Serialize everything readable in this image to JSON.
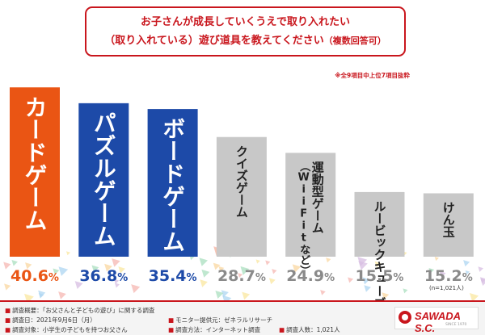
{
  "title": {
    "line1": "お子さんが成長していくうえで取り入れたい",
    "line2": "（取り入れている）遊び道具を教えてください",
    "line2_note": "（複数回答可）"
  },
  "footnote": "※全9項目中上位7項目抜粋",
  "sample_note": "(n=1,021人)",
  "colors": {
    "accent_red": "#c9161d",
    "bar_orange": "#ea5514",
    "bar_blue": "#1d4aa8",
    "bar_gray": "#c8c8c8",
    "label_gray": "#888888"
  },
  "chart_data": {
    "type": "bar",
    "categories": [
      "カードゲーム",
      "パズルゲーム",
      "ボードゲーム",
      "クイズゲーム",
      "運動型ゲーム（Wii Fitなど）",
      "ルービックキューブ",
      "けん玉"
    ],
    "values": [
      40.6,
      36.8,
      35.4,
      28.7,
      24.9,
      15.5,
      15.2
    ],
    "value_labels": [
      "40.6%",
      "36.8%",
      "35.4%",
      "28.7%",
      "24.9%",
      "15.5%",
      "15.2%"
    ],
    "bar_colors": [
      "#ea5514",
      "#1d4aa8",
      "#1d4aa8",
      "#c8c8c8",
      "#c8c8c8",
      "#c8c8c8",
      "#c8c8c8"
    ],
    "label_lines": [
      [
        "カードゲーム"
      ],
      [
        "パズルゲーム"
      ],
      [
        "ボードゲーム"
      ],
      [
        "クイズゲーム"
      ],
      [
        "運動型ゲーム",
        "（WiiFitなど）"
      ],
      [
        "ルービックキューブ"
      ],
      [
        "けん玉"
      ]
    ],
    "ylim": [
      0,
      42
    ],
    "xlabel": "",
    "ylabel": "",
    "grid": false,
    "legend": "none"
  },
  "footer": {
    "overview_label": "調査概要：",
    "overview": "「お父さんと子どもの遊び」に関する調査",
    "date_label": "調査日：",
    "date": "2021年9月6日（月）",
    "target_label": "調査対象：",
    "target": "小学生の子どもを持つお父さん",
    "monitor_label": "モニター提供元：",
    "monitor": "ゼネラルリサーチ",
    "method_label": "調査方法：",
    "method": "インターネット調査",
    "count_label": "調査人数：",
    "count": "1,021人"
  },
  "brand": {
    "name": "SAWADA S.C.",
    "since": "SINCE 1970"
  }
}
